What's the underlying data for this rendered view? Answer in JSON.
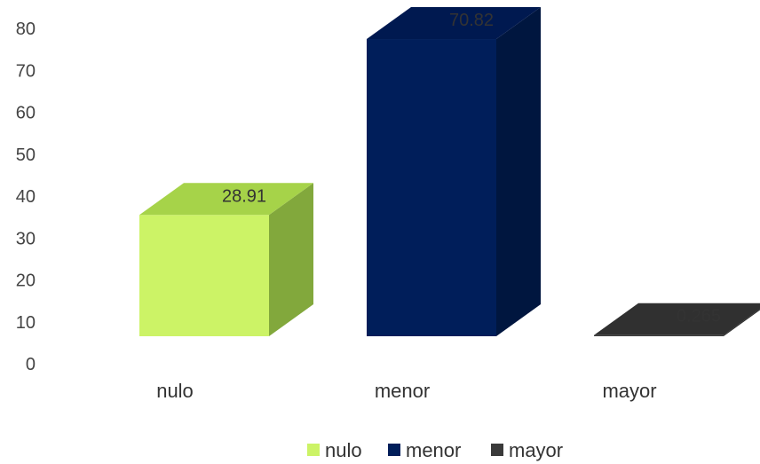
{
  "chart_data": {
    "type": "bar",
    "title": "",
    "xlabel": "",
    "ylabel": "",
    "categories": [
      "nulo",
      "menor",
      "mayor"
    ],
    "values": [
      28.91,
      70.82,
      0.265
    ],
    "data_labels": [
      "28.91",
      "70.82",
      "0.265"
    ],
    "yticks": [
      "0",
      "10",
      "20",
      "30",
      "40",
      "50",
      "60",
      "70",
      "80"
    ],
    "ylim": [
      0,
      80
    ],
    "grid": false,
    "style": "3d-column",
    "legend_position": "bottom",
    "colors": {
      "nulo": {
        "front": "#ccf366",
        "side": "#82a83c",
        "top": "#a6d349"
      },
      "menor": {
        "front": "#001e5a",
        "side": "#00163f",
        "top": "#001950"
      },
      "mayor": {
        "front": "#3a3a3a",
        "side": "#262626",
        "top": "#303030"
      }
    }
  }
}
